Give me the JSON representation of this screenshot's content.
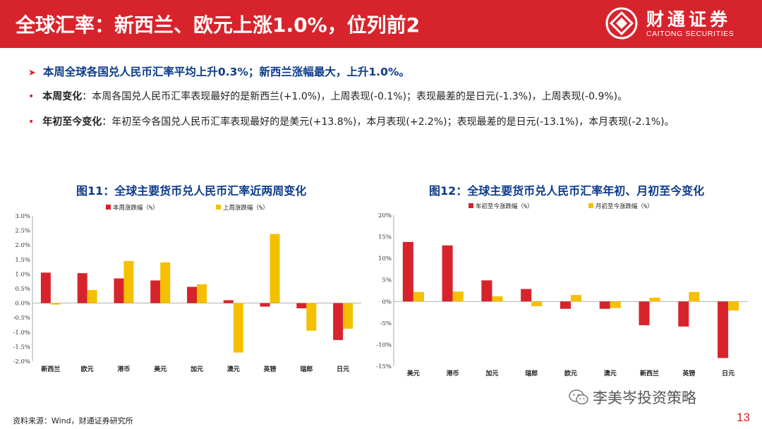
{
  "header": {
    "title": "全球汇率：新西兰、欧元上涨1.0%，位列前2",
    "logo_cn": "财通证券",
    "logo_en": "CAITONG SECURITIES"
  },
  "summary": "本周全球各国兑人民币汇率平均上升0.3%；新西兰涨幅最大，上升1.0%。",
  "bullets": [
    {
      "lead": "本周变化",
      "text": "：本周各国兑人民币汇率表现最好的是新西兰(+1.0%)，上周表现(-0.1%)；表现最差的是日元(-1.3%)，上周表现(-0.9%)。"
    },
    {
      "lead": "年初至今变化",
      "text": "：年初至今各国兑人民币汇率表现最好的是美元(+13.8%)，本月表现(+2.2%)；表现最差的是日元(-13.1%)，本月表现(-2.1%)。"
    }
  ],
  "colors": {
    "red": "#d7242c",
    "yellow": "#f5c000",
    "navy": "#0d3b8c"
  },
  "chart_data": [
    {
      "type": "bar",
      "title": "图11：全球主要货币兑人民币汇率近两周变化",
      "categories": [
        "新西兰",
        "欧元",
        "港币",
        "美元",
        "加元",
        "澳元",
        "英镑",
        "瑞郎",
        "日元"
      ],
      "series": [
        {
          "name": "本周涨跌幅（%）",
          "values": [
            1.05,
            1.03,
            0.85,
            0.78,
            0.56,
            0.1,
            -0.12,
            -0.18,
            -1.27
          ]
        },
        {
          "name": "上周涨跌幅（%）",
          "values": [
            -0.05,
            0.45,
            1.45,
            1.4,
            0.65,
            -1.7,
            2.38,
            -0.95,
            -0.88
          ]
        }
      ],
      "ylim": [
        -2.0,
        3.0
      ],
      "yticks": [
        "3.0%",
        "2.5%",
        "2.0%",
        "1.5%",
        "1.0%",
        "0.5%",
        "0.0%",
        "-0.5%",
        "-1.0%",
        "-1.5%",
        "-2.0%"
      ],
      "legend": "top"
    },
    {
      "type": "bar",
      "title": "图12：全球主要货币兑人民币汇率年初、月初至今变化",
      "categories": [
        "美元",
        "港币",
        "加元",
        "瑞郎",
        "欧元",
        "澳元",
        "新西兰",
        "英镑",
        "日元"
      ],
      "series": [
        {
          "name": "年初至今涨跌幅（%）",
          "values": [
            13.8,
            13.0,
            4.9,
            2.9,
            -1.7,
            -1.7,
            -5.5,
            -5.8,
            -13.1
          ]
        },
        {
          "name": "月初至今涨跌幅（%）",
          "values": [
            2.2,
            2.3,
            1.2,
            -1.1,
            1.5,
            -1.5,
            0.9,
            2.2,
            -2.1
          ]
        }
      ],
      "ylim": [
        -15,
        20
      ],
      "yticks": [
        "20%",
        "15%",
        "10%",
        "5%",
        "0%",
        "-5%",
        "-10%",
        "-15%"
      ],
      "legend": "top"
    }
  ],
  "footer": {
    "source": "资料来源：Wind，财通证券研究所",
    "watermark": "李美岑投资策略",
    "page": "13"
  }
}
